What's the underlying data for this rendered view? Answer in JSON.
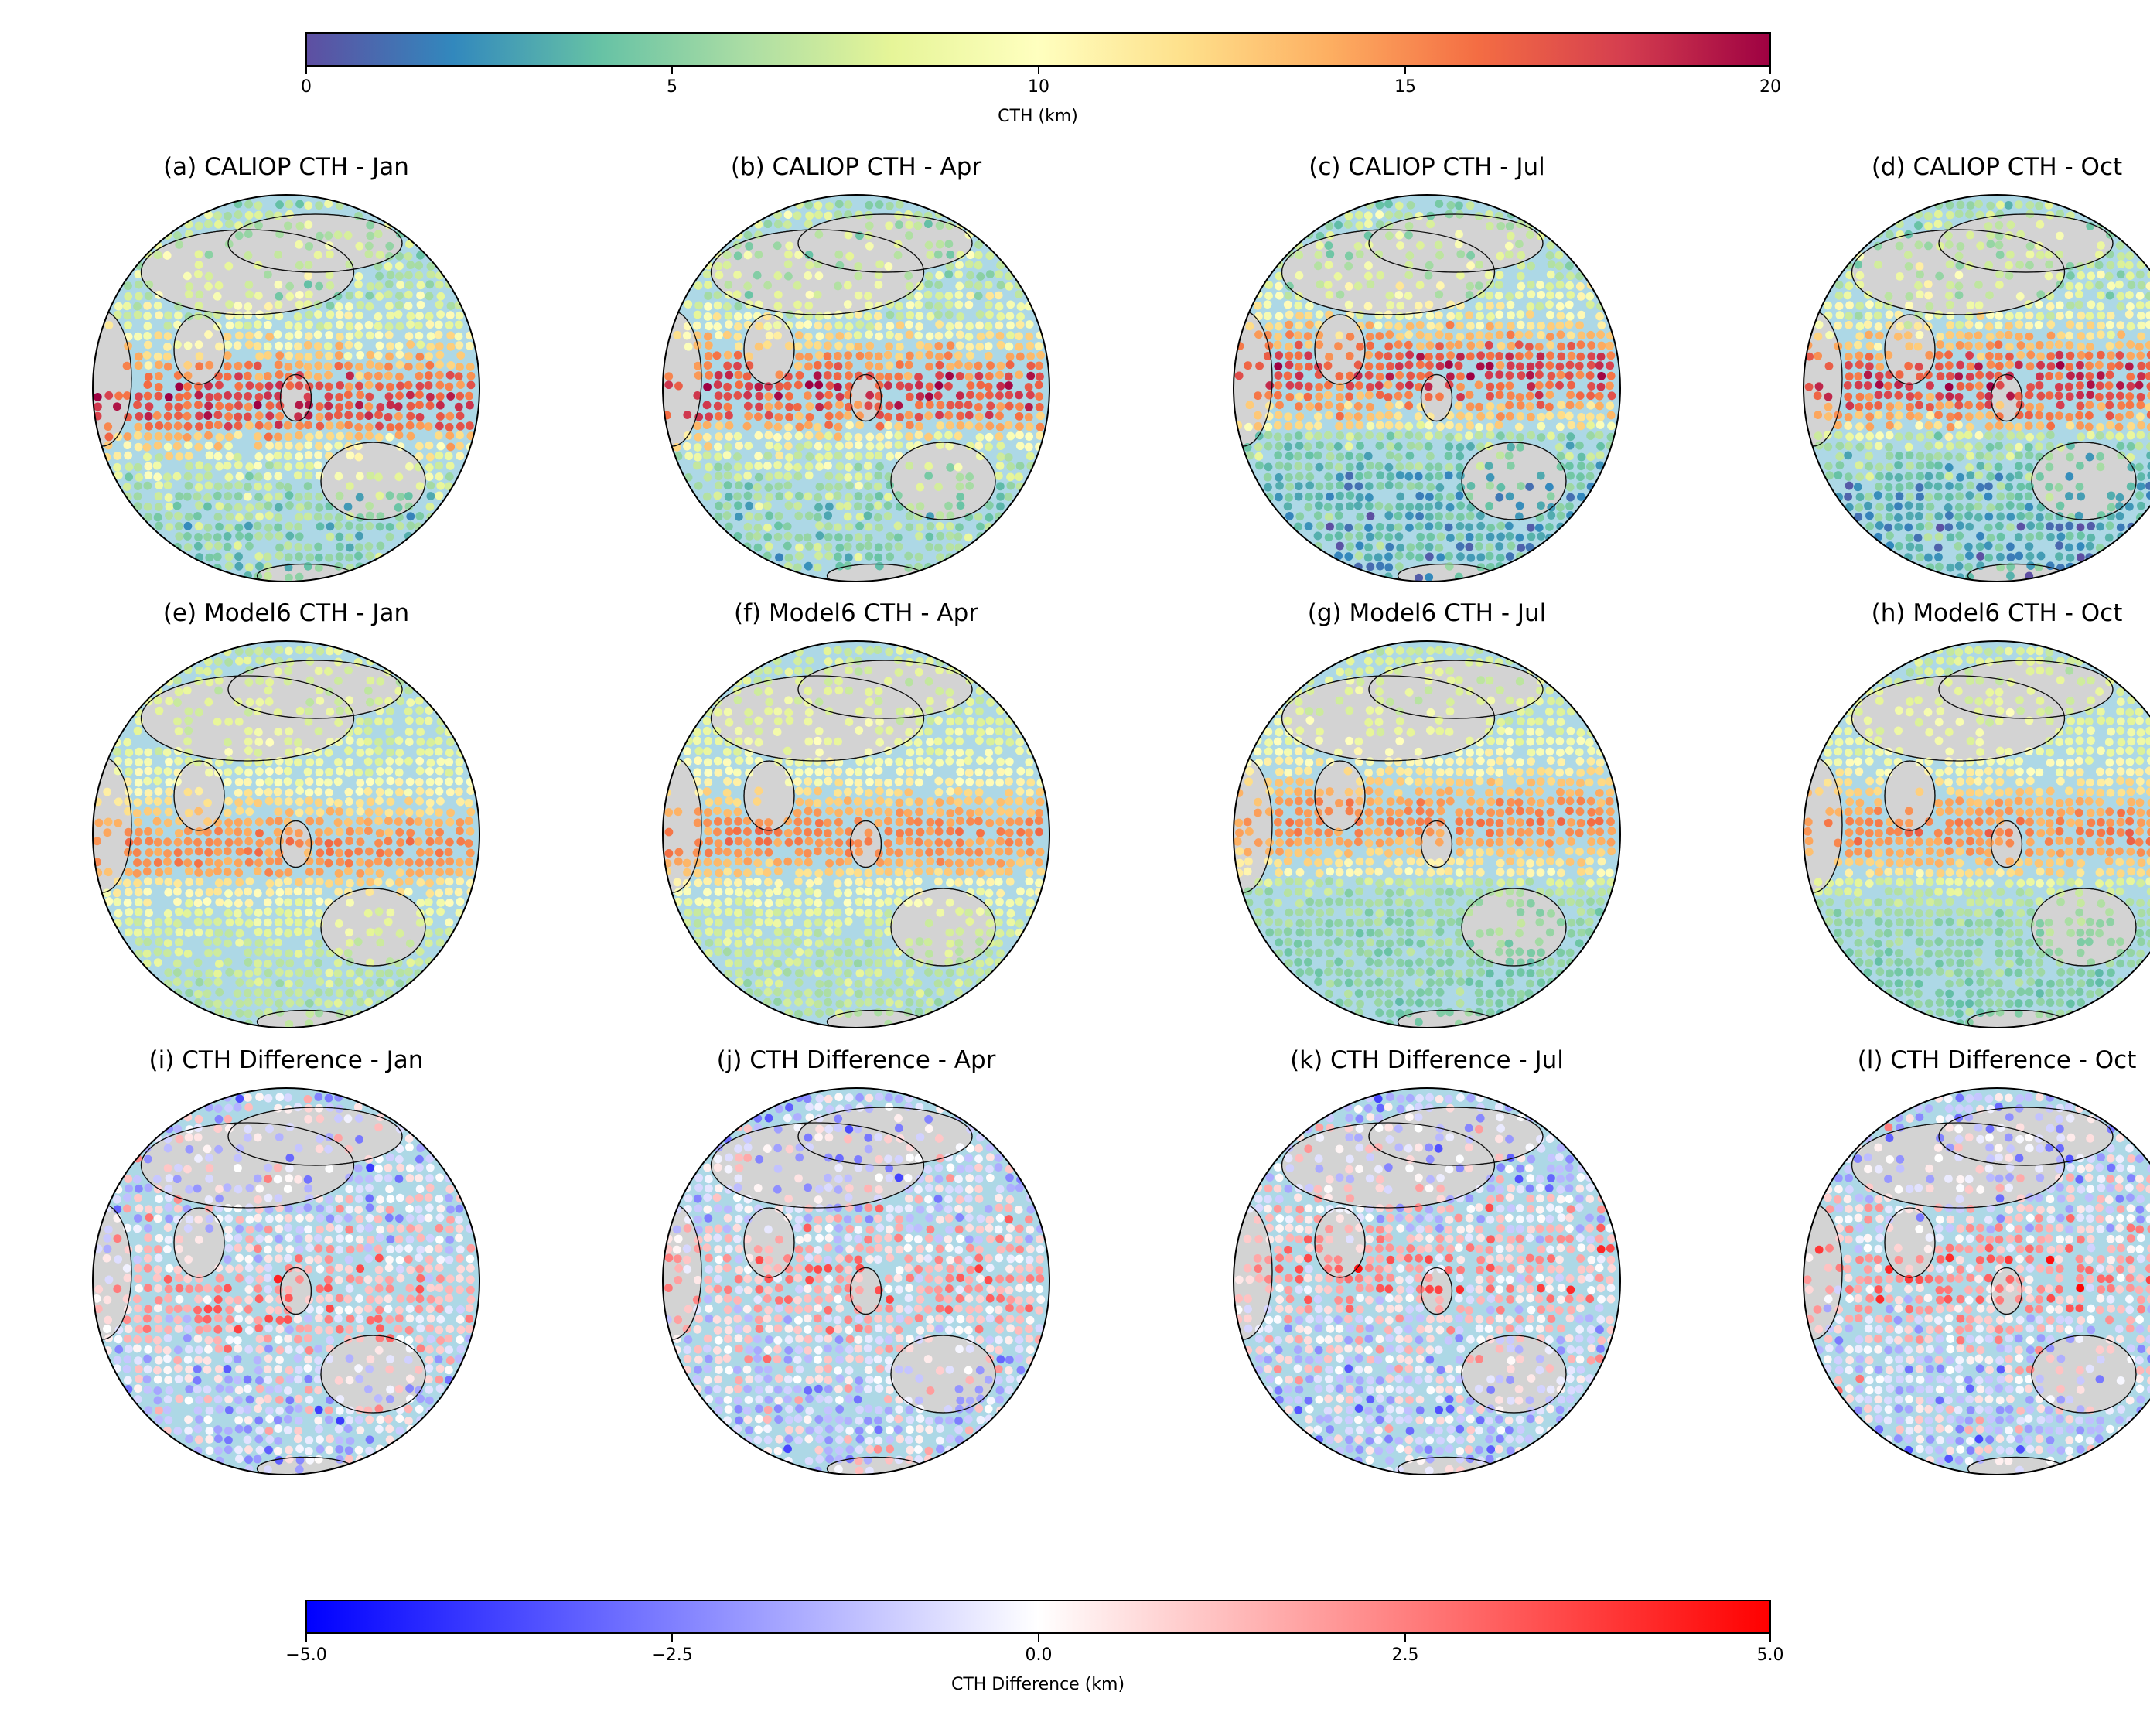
{
  "figure": {
    "colorbar_cth": {
      "label": "CTH (km)",
      "ticks": [
        "0",
        "5",
        "10",
        "15",
        "20"
      ],
      "vmin": 0,
      "vmax": 20,
      "cmap": "Spectral_r"
    },
    "colorbar_diff": {
      "label": "CTH Difference (km)",
      "ticks": [
        "−5.0",
        "−2.5",
        "0.0",
        "2.5",
        "5.0"
      ],
      "vmin": -5,
      "vmax": 5,
      "cmap": "bwr"
    },
    "panels": [
      {
        "title": "(a) CALIOP CTH - Jan"
      },
      {
        "title": "(b) CALIOP CTH - Apr"
      },
      {
        "title": "(c) CALIOP CTH - Jul"
      },
      {
        "title": "(d) CALIOP CTH - Oct"
      },
      {
        "title": "(e) Model6 CTH - Jan"
      },
      {
        "title": "(f) Model6 CTH - Apr"
      },
      {
        "title": "(g) Model6 CTH - Jul"
      },
      {
        "title": "(h) Model6 CTH - Oct"
      },
      {
        "title": "(i) CTH Difference - Jan"
      },
      {
        "title": "(j) CTH Difference - Apr"
      },
      {
        "title": "(k) CTH Difference - Jul"
      },
      {
        "title": "(l) CTH Difference - Oct"
      }
    ]
  },
  "chart_data": [
    {
      "type": "heatmap",
      "title": "(a) CALIOP CTH - Jan",
      "variable": "CTH",
      "units": "km",
      "projection": "orthographic",
      "season_shift": -0.3,
      "pattern": "caliop"
    },
    {
      "type": "heatmap",
      "title": "(b) CALIOP CTH - Apr",
      "variable": "CTH",
      "units": "km",
      "projection": "orthographic",
      "season_shift": -0.05,
      "pattern": "caliop"
    },
    {
      "type": "heatmap",
      "title": "(c) CALIOP CTH - Jul",
      "variable": "CTH",
      "units": "km",
      "projection": "orthographic",
      "season_shift": 0.35,
      "pattern": "caliop"
    },
    {
      "type": "heatmap",
      "title": "(d) CALIOP CTH - Oct",
      "variable": "CTH",
      "units": "km",
      "projection": "orthographic",
      "season_shift": 0.1,
      "pattern": "caliop"
    },
    {
      "type": "heatmap",
      "title": "(e) Model6 CTH - Jan",
      "variable": "CTH",
      "units": "km",
      "projection": "orthographic",
      "season_shift": -0.3,
      "pattern": "model"
    },
    {
      "type": "heatmap",
      "title": "(f) Model6 CTH - Apr",
      "variable": "CTH",
      "units": "km",
      "projection": "orthographic",
      "season_shift": -0.05,
      "pattern": "model"
    },
    {
      "type": "heatmap",
      "title": "(g) Model6 CTH - Jul",
      "variable": "CTH",
      "units": "km",
      "projection": "orthographic",
      "season_shift": 0.35,
      "pattern": "model"
    },
    {
      "type": "heatmap",
      "title": "(h) Model6 CTH - Oct",
      "variable": "CTH",
      "units": "km",
      "projection": "orthographic",
      "season_shift": 0.1,
      "pattern": "model"
    },
    {
      "type": "heatmap",
      "title": "(i) CTH Difference - Jan",
      "variable": "CTH Difference",
      "units": "km",
      "projection": "orthographic",
      "season_shift": -0.3,
      "pattern": "diff"
    },
    {
      "type": "heatmap",
      "title": "(j) CTH Difference - Apr",
      "variable": "CTH Difference",
      "units": "km",
      "projection": "orthographic",
      "season_shift": -0.05,
      "pattern": "diff"
    },
    {
      "type": "heatmap",
      "title": "(k) CTH Difference - Jul",
      "variable": "CTH Difference",
      "units": "km",
      "projection": "orthographic",
      "season_shift": 0.35,
      "pattern": "diff"
    },
    {
      "type": "heatmap",
      "title": "(l) CTH Difference - Oct",
      "variable": "CTH Difference",
      "units": "km",
      "projection": "orthographic",
      "season_shift": 0.1,
      "pattern": "diff"
    }
  ]
}
